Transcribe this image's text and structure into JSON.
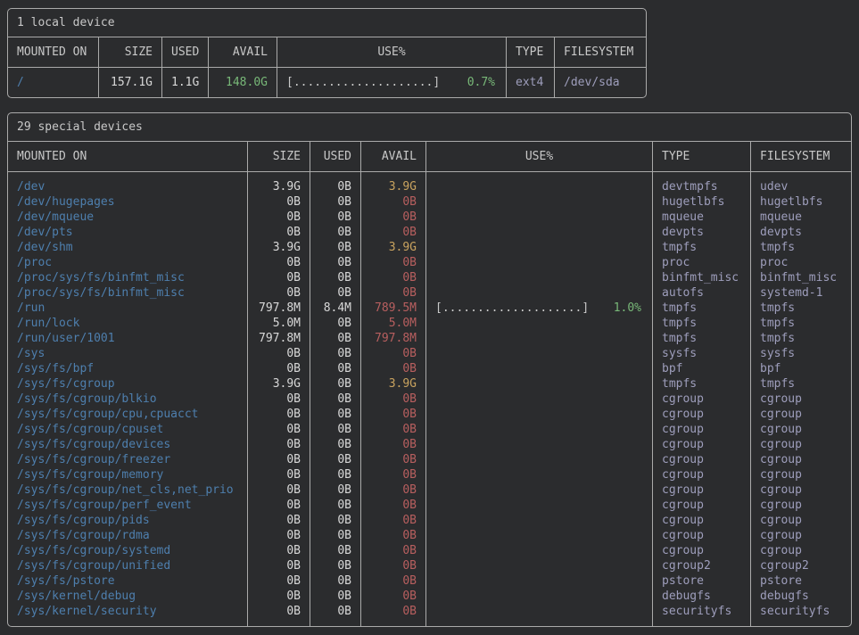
{
  "colors": {
    "background": "#2b2c2e",
    "border": "#aaaaaa",
    "heading": "#c8c8c8",
    "value": "#d8d8d8",
    "mount_blue": "#4e7fae",
    "green": "#78b878",
    "yellow": "#c9a35f",
    "red": "#b85f5f",
    "lavender": "#9e9ebc",
    "bar": "#c8c8c8"
  },
  "tables": [
    {
      "title": "1 local device",
      "headers": [
        "MOUNTED ON",
        "SIZE",
        "USED",
        "AVAIL",
        "USE%",
        "TYPE",
        "FILESYSTEM"
      ],
      "rows": [
        {
          "mount": "/",
          "size": "157.1G",
          "used": "1.1G",
          "avail": "148.0G",
          "avail_color": "green",
          "bar": "[....................]",
          "pct": "0.7%",
          "type": "ext4",
          "fs": "/dev/sda"
        }
      ]
    },
    {
      "title": "29 special devices",
      "headers": [
        "MOUNTED ON",
        "SIZE",
        "USED",
        "AVAIL",
        "USE%",
        "TYPE",
        "FILESYSTEM"
      ],
      "rows": [
        {
          "mount": "/dev",
          "size": "3.9G",
          "used": "0B",
          "avail": "3.9G",
          "avail_color": "yellow",
          "bar": "",
          "pct": "",
          "type": "devtmpfs",
          "fs": "udev"
        },
        {
          "mount": "/dev/hugepages",
          "size": "0B",
          "used": "0B",
          "avail": "0B",
          "avail_color": "red",
          "bar": "",
          "pct": "",
          "type": "hugetlbfs",
          "fs": "hugetlbfs"
        },
        {
          "mount": "/dev/mqueue",
          "size": "0B",
          "used": "0B",
          "avail": "0B",
          "avail_color": "red",
          "bar": "",
          "pct": "",
          "type": "mqueue",
          "fs": "mqueue"
        },
        {
          "mount": "/dev/pts",
          "size": "0B",
          "used": "0B",
          "avail": "0B",
          "avail_color": "red",
          "bar": "",
          "pct": "",
          "type": "devpts",
          "fs": "devpts"
        },
        {
          "mount": "/dev/shm",
          "size": "3.9G",
          "used": "0B",
          "avail": "3.9G",
          "avail_color": "yellow",
          "bar": "",
          "pct": "",
          "type": "tmpfs",
          "fs": "tmpfs"
        },
        {
          "mount": "/proc",
          "size": "0B",
          "used": "0B",
          "avail": "0B",
          "avail_color": "red",
          "bar": "",
          "pct": "",
          "type": "proc",
          "fs": "proc"
        },
        {
          "mount": "/proc/sys/fs/binfmt_misc",
          "size": "0B",
          "used": "0B",
          "avail": "0B",
          "avail_color": "red",
          "bar": "",
          "pct": "",
          "type": "binfmt_misc",
          "fs": "binfmt_misc"
        },
        {
          "mount": "/proc/sys/fs/binfmt_misc",
          "size": "0B",
          "used": "0B",
          "avail": "0B",
          "avail_color": "red",
          "bar": "",
          "pct": "",
          "type": "autofs",
          "fs": "systemd-1"
        },
        {
          "mount": "/run",
          "size": "797.8M",
          "used": "8.4M",
          "avail": "789.5M",
          "avail_color": "red",
          "bar": "[....................]",
          "pct": "1.0%",
          "type": "tmpfs",
          "fs": "tmpfs"
        },
        {
          "mount": "/run/lock",
          "size": "5.0M",
          "used": "0B",
          "avail": "5.0M",
          "avail_color": "red",
          "bar": "",
          "pct": "",
          "type": "tmpfs",
          "fs": "tmpfs"
        },
        {
          "mount": "/run/user/1001",
          "size": "797.8M",
          "used": "0B",
          "avail": "797.8M",
          "avail_color": "red",
          "bar": "",
          "pct": "",
          "type": "tmpfs",
          "fs": "tmpfs"
        },
        {
          "mount": "/sys",
          "size": "0B",
          "used": "0B",
          "avail": "0B",
          "avail_color": "red",
          "bar": "",
          "pct": "",
          "type": "sysfs",
          "fs": "sysfs"
        },
        {
          "mount": "/sys/fs/bpf",
          "size": "0B",
          "used": "0B",
          "avail": "0B",
          "avail_color": "red",
          "bar": "",
          "pct": "",
          "type": "bpf",
          "fs": "bpf"
        },
        {
          "mount": "/sys/fs/cgroup",
          "size": "3.9G",
          "used": "0B",
          "avail": "3.9G",
          "avail_color": "yellow",
          "bar": "",
          "pct": "",
          "type": "tmpfs",
          "fs": "tmpfs"
        },
        {
          "mount": "/sys/fs/cgroup/blkio",
          "size": "0B",
          "used": "0B",
          "avail": "0B",
          "avail_color": "red",
          "bar": "",
          "pct": "",
          "type": "cgroup",
          "fs": "cgroup"
        },
        {
          "mount": "/sys/fs/cgroup/cpu,cpuacct",
          "size": "0B",
          "used": "0B",
          "avail": "0B",
          "avail_color": "red",
          "bar": "",
          "pct": "",
          "type": "cgroup",
          "fs": "cgroup"
        },
        {
          "mount": "/sys/fs/cgroup/cpuset",
          "size": "0B",
          "used": "0B",
          "avail": "0B",
          "avail_color": "red",
          "bar": "",
          "pct": "",
          "type": "cgroup",
          "fs": "cgroup"
        },
        {
          "mount": "/sys/fs/cgroup/devices",
          "size": "0B",
          "used": "0B",
          "avail": "0B",
          "avail_color": "red",
          "bar": "",
          "pct": "",
          "type": "cgroup",
          "fs": "cgroup"
        },
        {
          "mount": "/sys/fs/cgroup/freezer",
          "size": "0B",
          "used": "0B",
          "avail": "0B",
          "avail_color": "red",
          "bar": "",
          "pct": "",
          "type": "cgroup",
          "fs": "cgroup"
        },
        {
          "mount": "/sys/fs/cgroup/memory",
          "size": "0B",
          "used": "0B",
          "avail": "0B",
          "avail_color": "red",
          "bar": "",
          "pct": "",
          "type": "cgroup",
          "fs": "cgroup"
        },
        {
          "mount": "/sys/fs/cgroup/net_cls,net_prio",
          "size": "0B",
          "used": "0B",
          "avail": "0B",
          "avail_color": "red",
          "bar": "",
          "pct": "",
          "type": "cgroup",
          "fs": "cgroup"
        },
        {
          "mount": "/sys/fs/cgroup/perf_event",
          "size": "0B",
          "used": "0B",
          "avail": "0B",
          "avail_color": "red",
          "bar": "",
          "pct": "",
          "type": "cgroup",
          "fs": "cgroup"
        },
        {
          "mount": "/sys/fs/cgroup/pids",
          "size": "0B",
          "used": "0B",
          "avail": "0B",
          "avail_color": "red",
          "bar": "",
          "pct": "",
          "type": "cgroup",
          "fs": "cgroup"
        },
        {
          "mount": "/sys/fs/cgroup/rdma",
          "size": "0B",
          "used": "0B",
          "avail": "0B",
          "avail_color": "red",
          "bar": "",
          "pct": "",
          "type": "cgroup",
          "fs": "cgroup"
        },
        {
          "mount": "/sys/fs/cgroup/systemd",
          "size": "0B",
          "used": "0B",
          "avail": "0B",
          "avail_color": "red",
          "bar": "",
          "pct": "",
          "type": "cgroup",
          "fs": "cgroup"
        },
        {
          "mount": "/sys/fs/cgroup/unified",
          "size": "0B",
          "used": "0B",
          "avail": "0B",
          "avail_color": "red",
          "bar": "",
          "pct": "",
          "type": "cgroup2",
          "fs": "cgroup2"
        },
        {
          "mount": "/sys/fs/pstore",
          "size": "0B",
          "used": "0B",
          "avail": "0B",
          "avail_color": "red",
          "bar": "",
          "pct": "",
          "type": "pstore",
          "fs": "pstore"
        },
        {
          "mount": "/sys/kernel/debug",
          "size": "0B",
          "used": "0B",
          "avail": "0B",
          "avail_color": "red",
          "bar": "",
          "pct": "",
          "type": "debugfs",
          "fs": "debugfs"
        },
        {
          "mount": "/sys/kernel/security",
          "size": "0B",
          "used": "0B",
          "avail": "0B",
          "avail_color": "red",
          "bar": "",
          "pct": "",
          "type": "securityfs",
          "fs": "securityfs"
        }
      ]
    }
  ]
}
